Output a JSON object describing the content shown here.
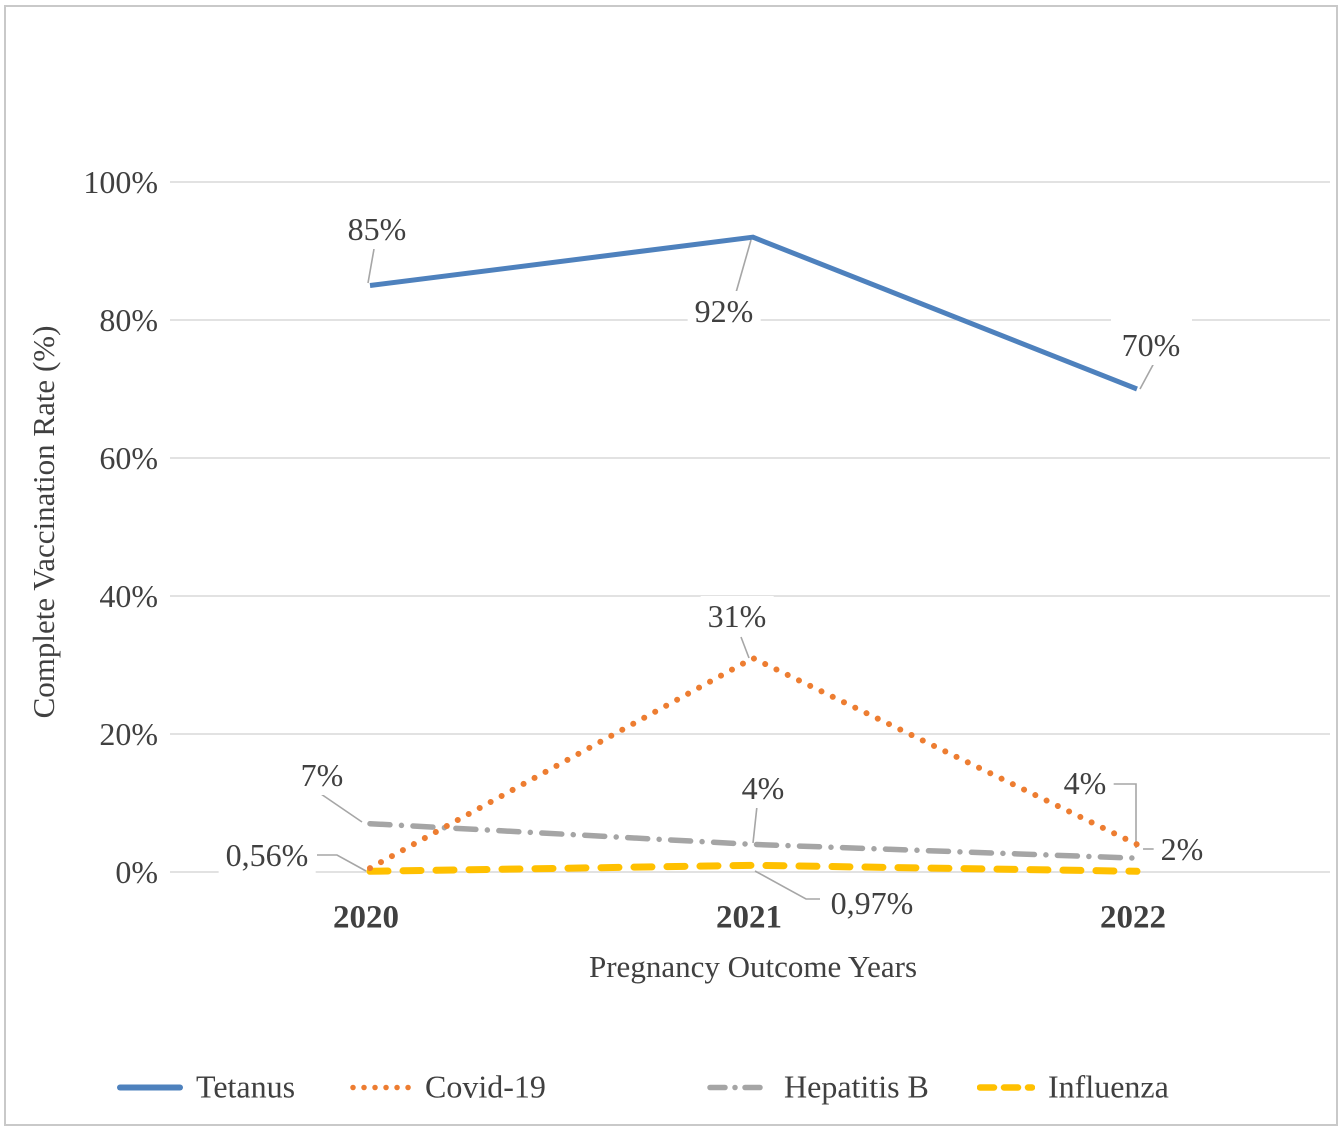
{
  "chart_data": {
    "type": "line",
    "title": "",
    "xlabel": "Pregnancy Outcome Years",
    "ylabel": "Complete Vaccination Rate (%)",
    "categories": [
      "2020",
      "2021",
      "2022"
    ],
    "series": [
      {
        "name": "Tetanus",
        "color": "#4E81BD",
        "dash": "solid",
        "values": [
          85,
          92,
          70
        ],
        "labels": [
          "85%",
          "92%",
          "70%"
        ]
      },
      {
        "name": "Covid-19",
        "color": "#ED7D31",
        "dash": "dotted",
        "values": [
          0.56,
          31,
          4
        ],
        "labels": [
          "0,56%",
          "31%",
          "4%"
        ]
      },
      {
        "name": "Hepatitis B",
        "color": "#A5A5A5",
        "dash": "dashdot",
        "values": [
          7,
          4,
          2
        ],
        "labels": [
          "7%",
          "4%",
          "2%"
        ]
      },
      {
        "name": "Influenza",
        "color": "#FFC000",
        "dash": "dashed",
        "values": [
          0.1,
          0.97,
          0.1
        ],
        "labels": [
          null,
          "0,97%",
          null
        ]
      }
    ],
    "ylim": [
      0,
      100
    ],
    "yticks_values": [
      0,
      20,
      40,
      60,
      80,
      100
    ],
    "yticks_labels": [
      "0%",
      "20%",
      "40%",
      "60%",
      "80%",
      "100%"
    ],
    "grid": "horizontal",
    "legend_position": "bottom",
    "colors": {
      "grid": "#d9d9d9",
      "leader": "#a6a6a6",
      "text": "#404040",
      "border": "#c9c9c9"
    }
  }
}
